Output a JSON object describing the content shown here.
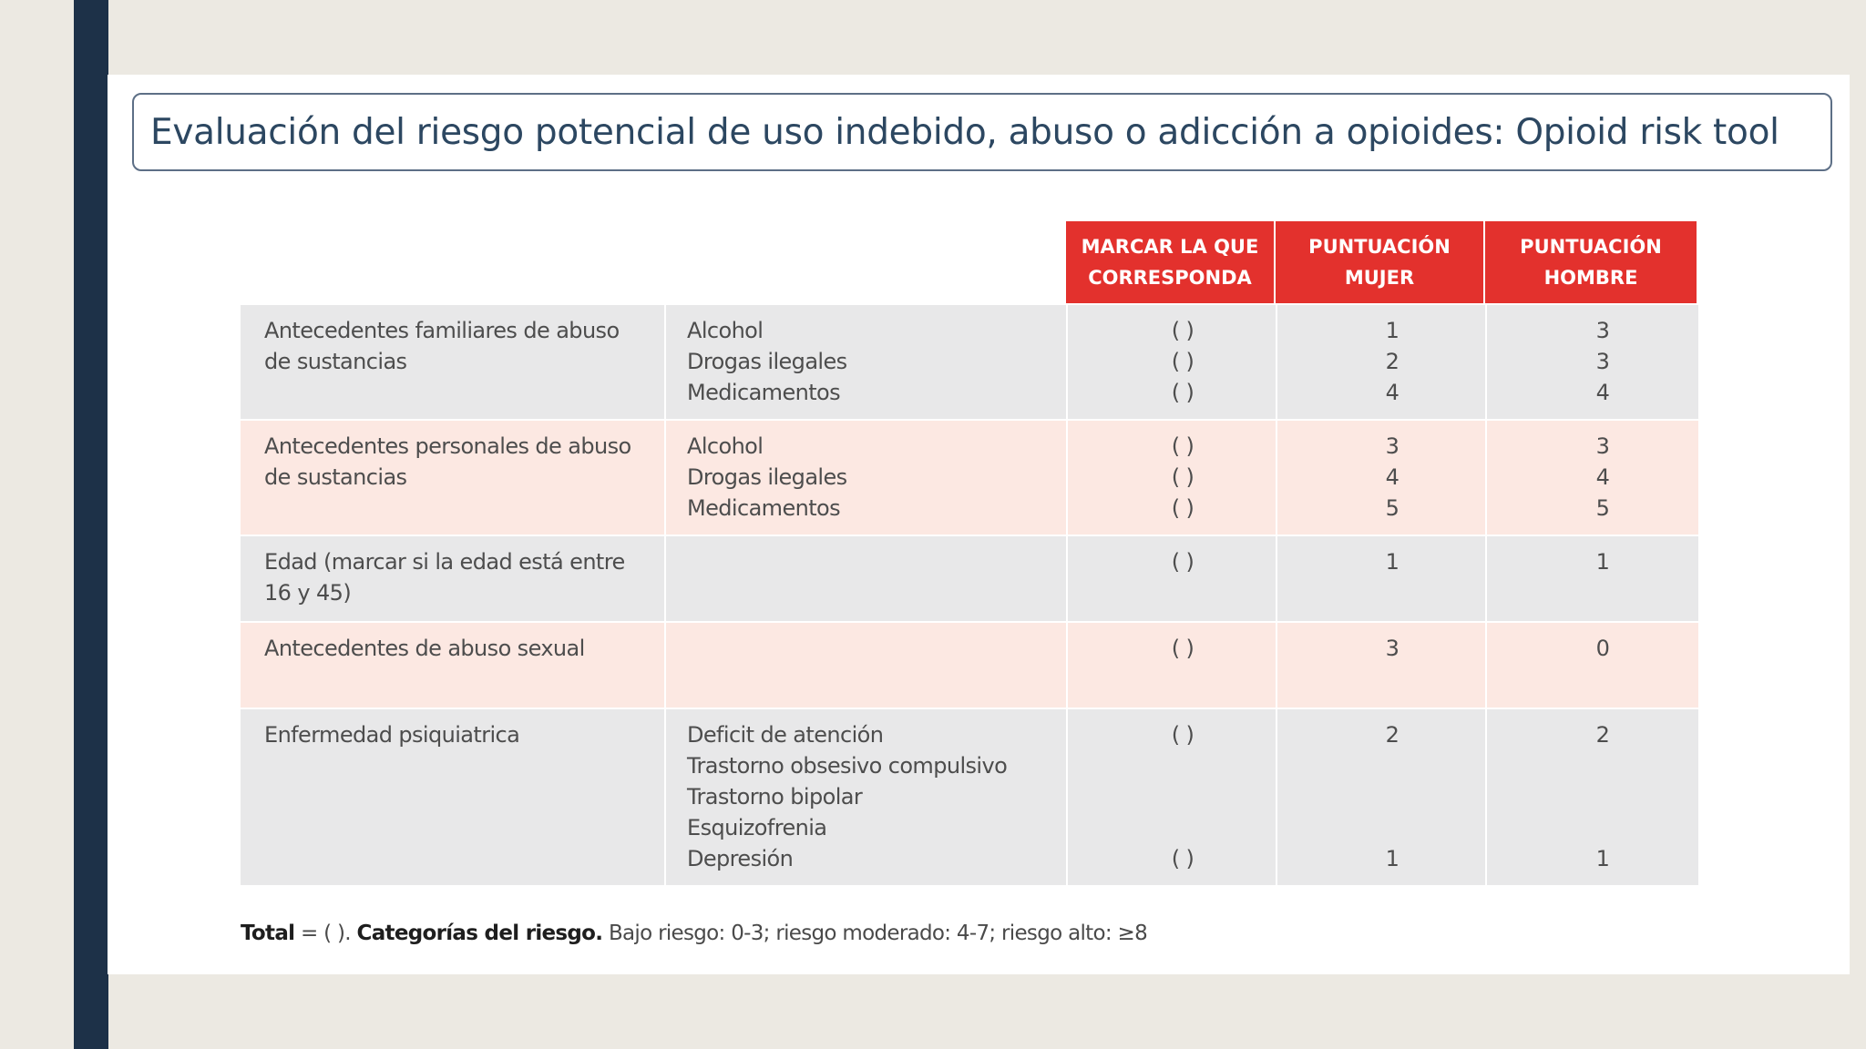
{
  "title": "Evaluación del riesgo potencial de uso indebido, abuso o adicción a opioides: Opioid risk tool",
  "headers": {
    "mark": [
      "MARCAR LA QUE",
      "CORRESPONDA"
    ],
    "women": [
      "PUNTUACIÓN",
      "MUJER"
    ],
    "men": [
      "PUNTUACIÓN",
      "HOMBRE"
    ]
  },
  "rows": [
    {
      "category": "Antecedentes familiares de abuso de sustancias",
      "items": [
        "Alcohol",
        "Drogas ilegales",
        "Medicamentos"
      ],
      "marks": [
        "( )",
        "( )",
        "( )"
      ],
      "women": [
        "1",
        "2",
        "4"
      ],
      "men": [
        "3",
        "3",
        "4"
      ]
    },
    {
      "category": "Antecedentes personales de abuso de sustancias",
      "items": [
        "Alcohol",
        "Drogas ilegales",
        "Medicamentos"
      ],
      "marks": [
        "( )",
        "( )",
        "( )"
      ],
      "women": [
        "3",
        "4",
        "5"
      ],
      "men": [
        "3",
        "4",
        "5"
      ]
    },
    {
      "category": "Edad (marcar si la edad está entre 16 y 45)",
      "items": [],
      "marks": [
        "( )"
      ],
      "women": [
        "1"
      ],
      "men": [
        "1"
      ]
    },
    {
      "category": "Antecedentes de abuso sexual",
      "items": [],
      "marks": [
        "( )"
      ],
      "women": [
        "3"
      ],
      "men": [
        "0"
      ]
    },
    {
      "category": "Enfermedad psiquiatrica",
      "items": [
        "Deficit de atención",
        "Trastorno obsesivo compulsivo",
        "Trastorno bipolar",
        "Esquizofrenia",
        "Depresión"
      ],
      "marks": [
        "( )",
        "",
        "",
        "",
        "( )"
      ],
      "women": [
        "2",
        "",
        "",
        "",
        "1"
      ],
      "men": [
        "2",
        "",
        "",
        "",
        "1"
      ]
    }
  ],
  "footer": {
    "total_label": "Total",
    "total_value": "= (      ).",
    "categories_label": "Categorías del riesgo.",
    "categories_text": "Bajo riesgo: 0-3; riesgo moderado: 4-7; riesgo alto: ≥8"
  }
}
